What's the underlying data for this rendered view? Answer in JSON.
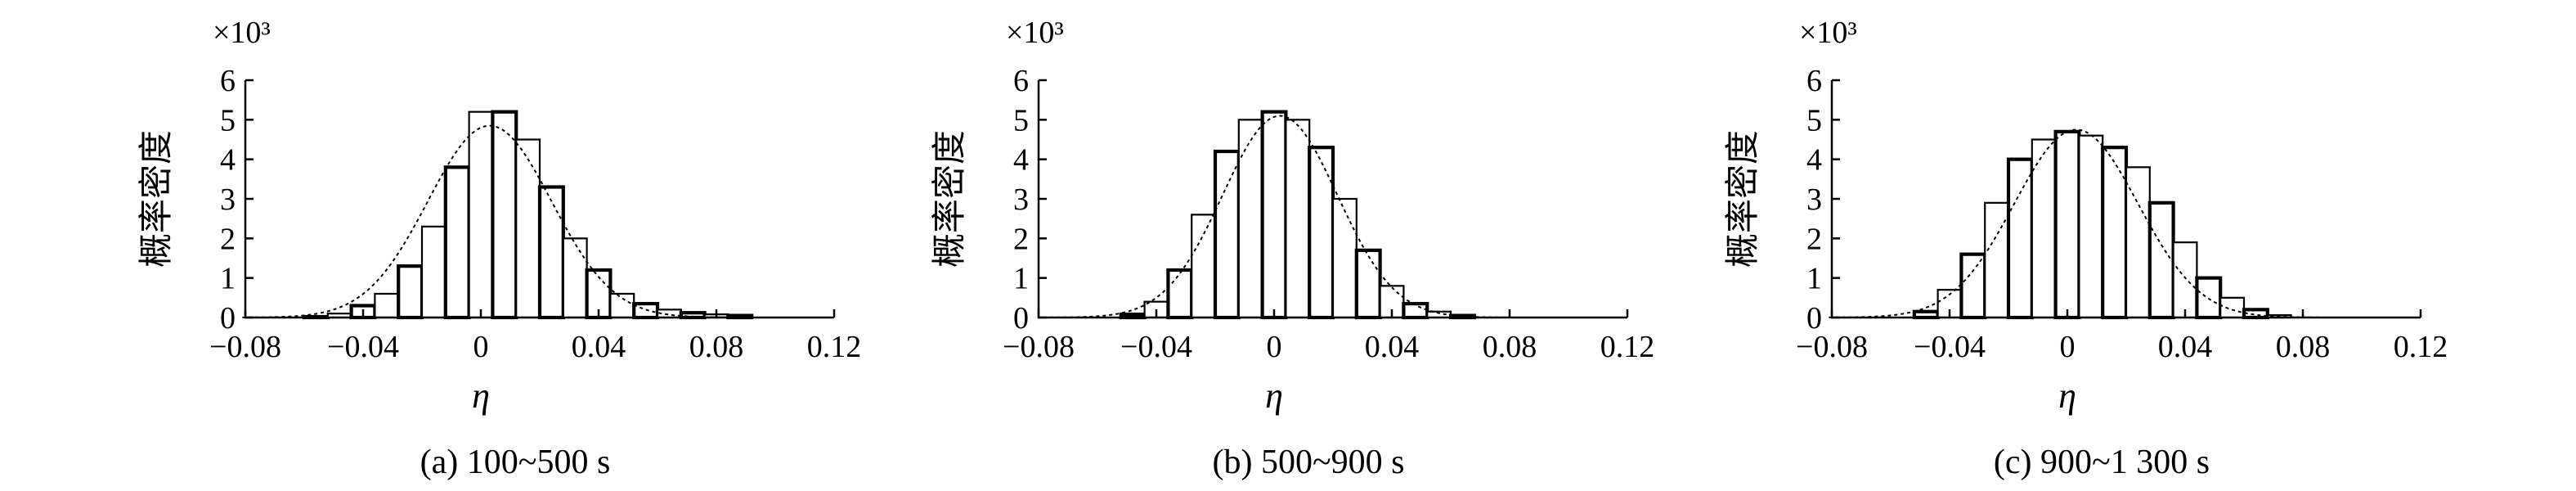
{
  "chart_data": [
    {
      "type": "bar",
      "subtitle": "(a) 100~500 s",
      "xlabel": "η",
      "ylabel": "概率密度",
      "y_multiplier": "×10³",
      "xlim": [
        -0.08,
        0.12
      ],
      "ylim": [
        0,
        6
      ],
      "xticks": [
        "−0.08",
        "−0.04",
        "0",
        "0.04",
        "0.08",
        "0.12"
      ],
      "xtick_values": [
        -0.08,
        -0.04,
        0,
        0.04,
        0.08,
        0.12
      ],
      "yticks": [
        "0",
        "1",
        "2",
        "3",
        "4",
        "5",
        "6"
      ],
      "ytick_values": [
        0,
        1,
        2,
        3,
        4,
        5,
        6
      ],
      "bin_width": 0.008,
      "bins_start": [
        -0.06,
        -0.052,
        -0.044,
        -0.036,
        -0.028,
        -0.02,
        -0.012,
        -0.004,
        0.004,
        0.012,
        0.02,
        0.028,
        0.036,
        0.044,
        0.052,
        0.06,
        0.068,
        0.076,
        0.084
      ],
      "values": [
        0.02,
        0.1,
        0.3,
        0.6,
        1.3,
        2.3,
        3.8,
        5.2,
        5.2,
        4.5,
        3.3,
        2.0,
        1.2,
        0.6,
        0.35,
        0.2,
        0.12,
        0.08,
        0.05
      ],
      "fit": {
        "type": "normal",
        "mean": 0.003,
        "sd": 0.021,
        "peak": 4.85
      }
    },
    {
      "type": "bar",
      "subtitle": "(b) 500~900 s",
      "xlabel": "η",
      "ylabel": "概率密度",
      "y_multiplier": "×10³",
      "xlim": [
        -0.08,
        0.12
      ],
      "ylim": [
        0,
        6
      ],
      "xticks": [
        "−0.08",
        "−0.04",
        "0",
        "0.04",
        "0.08",
        "0.12"
      ],
      "xtick_values": [
        -0.08,
        -0.04,
        0,
        0.04,
        0.08,
        0.12
      ],
      "yticks": [
        "0",
        "1",
        "2",
        "3",
        "4",
        "5",
        "6"
      ],
      "ytick_values": [
        0,
        1,
        2,
        3,
        4,
        5,
        6
      ],
      "bin_width": 0.008,
      "bins_start": [
        -0.052,
        -0.044,
        -0.036,
        -0.028,
        -0.02,
        -0.012,
        -0.004,
        0.004,
        0.012,
        0.02,
        0.028,
        0.036,
        0.044,
        0.052,
        0.06
      ],
      "values": [
        0.08,
        0.4,
        1.2,
        2.6,
        4.2,
        5.0,
        5.2,
        5.0,
        4.3,
        3.0,
        1.7,
        0.8,
        0.35,
        0.15,
        0.05
      ],
      "fit": {
        "type": "normal",
        "mean": 0.002,
        "sd": 0.0195,
        "peak": 5.1
      }
    },
    {
      "type": "bar",
      "subtitle": "(c) 900~1 300 s",
      "xlabel": "η",
      "ylabel": "概率密度",
      "y_multiplier": "×10³",
      "xlim": [
        -0.08,
        0.12
      ],
      "ylim": [
        0,
        6
      ],
      "xticks": [
        "−0.08",
        "−0.04",
        "0",
        "0.04",
        "0.08",
        "0.12"
      ],
      "xtick_values": [
        -0.08,
        -0.04,
        0,
        0.04,
        0.08,
        0.12
      ],
      "yticks": [
        "0",
        "1",
        "2",
        "3",
        "4",
        "5",
        "6"
      ],
      "ytick_values": [
        0,
        1,
        2,
        3,
        4,
        5,
        6
      ],
      "bin_width": 0.008,
      "bins_start": [
        -0.052,
        -0.044,
        -0.036,
        -0.028,
        -0.02,
        -0.012,
        -0.004,
        0.004,
        0.012,
        0.02,
        0.028,
        0.036,
        0.044,
        0.052,
        0.06,
        0.068
      ],
      "values": [
        0.15,
        0.7,
        1.6,
        2.9,
        4.0,
        4.5,
        4.7,
        4.6,
        4.3,
        3.8,
        2.9,
        1.9,
        1.0,
        0.5,
        0.2,
        0.06
      ],
      "fit": {
        "type": "normal",
        "mean": 0.003,
        "sd": 0.021,
        "peak": 4.75
      }
    }
  ]
}
